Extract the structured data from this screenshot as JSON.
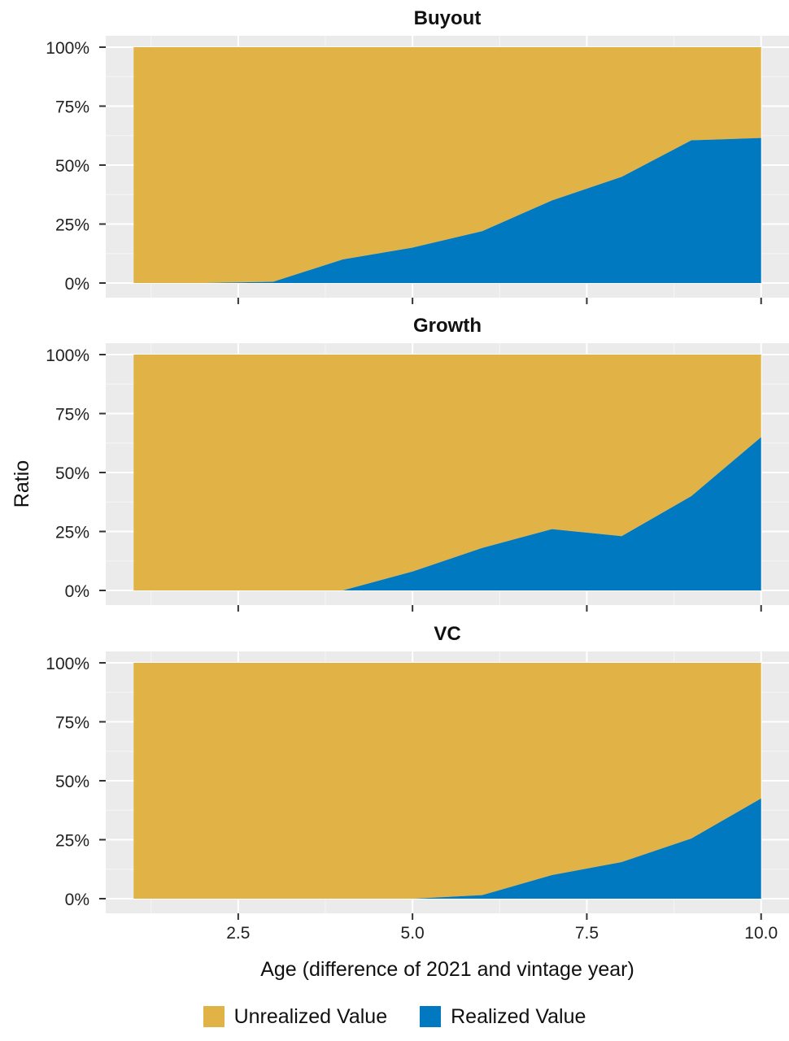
{
  "chart_data": {
    "type": "area",
    "xlabel": "Age (difference of 2021 and vintage year)",
    "ylabel": "Ratio",
    "xlim": [
      0.6,
      10.4
    ],
    "ylim": [
      0,
      1
    ],
    "x_ticks": [
      2.5,
      5.0,
      7.5,
      10.0
    ],
    "x_tick_labels": [
      "2.5",
      "5.0",
      "7.5",
      "10.0"
    ],
    "y_ticks": [
      0,
      0.25,
      0.5,
      0.75,
      1
    ],
    "y_tick_labels": [
      "0%",
      "25%",
      "50%",
      "75%",
      "100%"
    ],
    "grid": true,
    "stacked": true,
    "legend_position": "bottom",
    "legend": [
      {
        "name": "Unrealized Value",
        "color": "#E1B347"
      },
      {
        "name": "Realized Value",
        "color": "#0079C1"
      }
    ],
    "x": [
      1,
      2,
      3,
      4,
      5,
      6,
      7,
      8,
      9,
      10
    ],
    "facets": [
      {
        "title": "Buyout",
        "series": [
          {
            "name": "Realized Value",
            "values": [
              0,
              0,
              0.005,
              0.1,
              0.15,
              0.22,
              0.35,
              0.45,
              0.605,
              0.615
            ]
          },
          {
            "name": "Unrealized Value",
            "values": [
              1,
              1,
              0.995,
              0.9,
              0.85,
              0.78,
              0.65,
              0.55,
              0.395,
              0.385
            ]
          }
        ]
      },
      {
        "title": "Growth",
        "series": [
          {
            "name": "Realized Value",
            "values": [
              0,
              0,
              0,
              0,
              0.08,
              0.18,
              0.26,
              0.23,
              0.4,
              0.65
            ]
          },
          {
            "name": "Unrealized Value",
            "values": [
              1,
              1,
              1,
              1,
              0.92,
              0.82,
              0.74,
              0.77,
              0.6,
              0.35
            ]
          }
        ]
      },
      {
        "title": "VC",
        "series": [
          {
            "name": "Realized Value",
            "values": [
              0,
              0,
              0,
              0,
              0,
              0.015,
              0.1,
              0.155,
              0.255,
              0.425
            ]
          },
          {
            "name": "Unrealized Value",
            "values": [
              1,
              1,
              1,
              1,
              1,
              0.985,
              0.9,
              0.845,
              0.745,
              0.575
            ]
          }
        ]
      }
    ]
  }
}
